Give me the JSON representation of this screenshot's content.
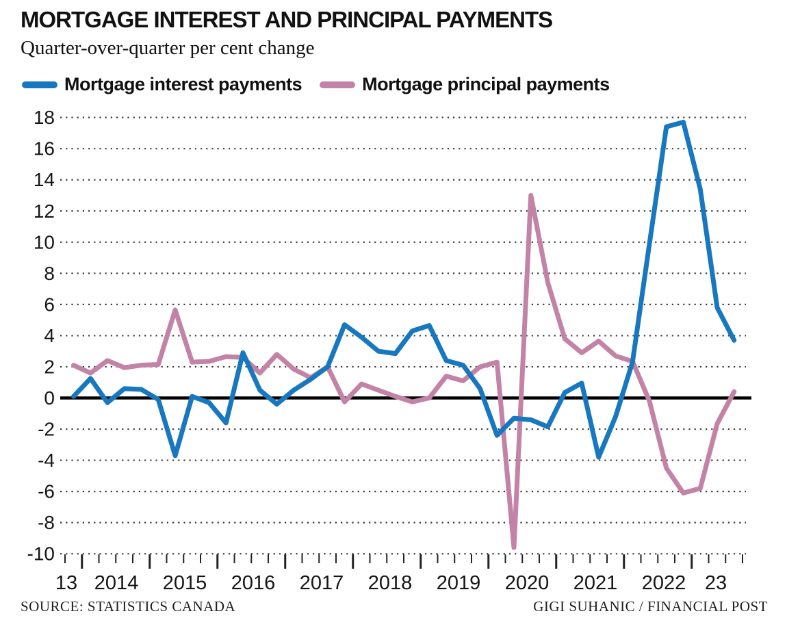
{
  "header": {
    "title": "MORTGAGE INTEREST AND PRINCIPAL PAYMENTS",
    "subtitle": "Quarter-over-quarter per cent change"
  },
  "legend": [
    {
      "label": "Mortgage interest payments",
      "color": "#1878bf"
    },
    {
      "label": "Mortgage principal payments",
      "color": "#c383a7"
    }
  ],
  "chart_data": {
    "type": "line",
    "x": [
      "2013 Q4",
      "2014 Q1",
      "2014 Q2",
      "2014 Q3",
      "2014 Q4",
      "2015 Q1",
      "2015 Q2",
      "2015 Q3",
      "2015 Q4",
      "2016 Q1",
      "2016 Q2",
      "2016 Q3",
      "2016 Q4",
      "2017 Q1",
      "2017 Q2",
      "2017 Q3",
      "2017 Q4",
      "2018 Q1",
      "2018 Q2",
      "2018 Q3",
      "2018 Q4",
      "2019 Q1",
      "2019 Q2",
      "2019 Q3",
      "2019 Q4",
      "2020 Q1",
      "2020 Q2",
      "2020 Q3",
      "2020 Q4",
      "2021 Q1",
      "2021 Q2",
      "2021 Q3",
      "2021 Q4",
      "2022 Q1",
      "2022 Q2",
      "2022 Q3",
      "2022 Q4",
      "2023 Q1",
      "2023 Q2",
      "2023 Q3"
    ],
    "series": [
      {
        "name": "Mortgage interest payments",
        "color": "#1878bf",
        "values": [
          0.1,
          1.25,
          -0.3,
          0.6,
          0.55,
          -0.1,
          -3.7,
          0.1,
          -0.3,
          -1.6,
          2.9,
          0.5,
          -0.4,
          0.5,
          1.2,
          2.0,
          4.7,
          3.9,
          3.0,
          2.85,
          4.3,
          4.65,
          2.4,
          2.1,
          0.6,
          -2.4,
          -1.3,
          -1.4,
          -1.85,
          0.35,
          0.95,
          -3.8,
          -1.2,
          2.3,
          9.9,
          17.4,
          17.7,
          13.4,
          5.8,
          3.7
        ]
      },
      {
        "name": "Mortgage principal payments",
        "color": "#c383a7",
        "values": [
          2.1,
          1.6,
          2.4,
          1.95,
          2.1,
          2.15,
          5.65,
          2.3,
          2.35,
          2.65,
          2.6,
          1.6,
          2.8,
          1.85,
          1.3,
          2.0,
          -0.25,
          0.9,
          0.5,
          0.1,
          -0.25,
          0.0,
          1.4,
          1.1,
          2.0,
          2.3,
          -9.6,
          13.0,
          7.4,
          3.8,
          2.9,
          3.65,
          2.7,
          2.35,
          -0.2,
          -4.5,
          -6.1,
          -5.8,
          -1.65,
          0.4
        ]
      }
    ],
    "title": "MORTGAGE INTEREST AND PRINCIPAL PAYMENTS",
    "subtitle": "Quarter-over-quarter per cent change",
    "xlabel": "",
    "ylabel": "",
    "ylim": [
      -10,
      18
    ],
    "ytick_step": 2,
    "y_ticks": [
      18,
      16,
      14,
      12,
      10,
      8,
      6,
      4,
      2,
      0,
      -2,
      -4,
      -6,
      -8,
      -10
    ],
    "x_year_labels": [
      "13",
      "2014",
      "2015",
      "2016",
      "2017",
      "2018",
      "2019",
      "2020",
      "2021",
      "2022",
      "23"
    ],
    "grid": "dotted-horizontal",
    "zero_line": true,
    "legend_position": "top"
  },
  "footer": {
    "source": "SOURCE: STATISTICS CANADA",
    "credit": "GIGI SUHANIC / FINANCIAL POST"
  }
}
